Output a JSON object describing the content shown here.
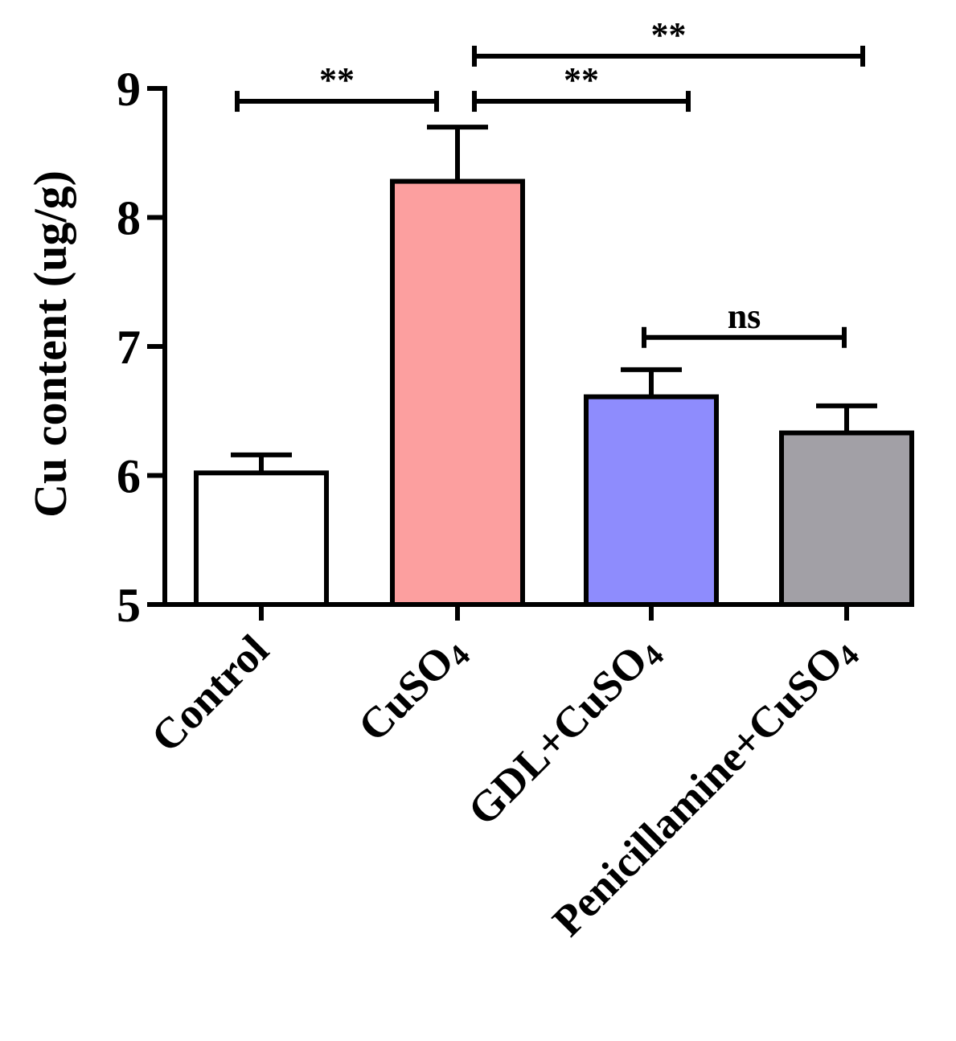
{
  "chart_data": {
    "type": "bar",
    "title": "",
    "xlabel": "",
    "ylabel": "Cu content (ug/g)",
    "ylim": [
      5,
      9
    ],
    "yticks": [
      5,
      6,
      7,
      8,
      9
    ],
    "grid": false,
    "categories": [
      {
        "base": "Control",
        "sub": ""
      },
      {
        "base": "CuSO",
        "sub": "4"
      },
      {
        "base": "GDL+CuSO",
        "sub": "4"
      },
      {
        "base": "Penicillamine+CuSO",
        "sub": "4"
      }
    ],
    "values": [
      6.02,
      8.28,
      6.61,
      6.33
    ],
    "errors": [
      0.14,
      0.42,
      0.21,
      0.21
    ],
    "colors": [
      "#ffffff",
      "#fc9f9f",
      "#8e8cfd",
      "#a2a0a6"
    ],
    "significance": [
      {
        "from": 0,
        "to": 1,
        "label": "**",
        "level": 8.9
      },
      {
        "from": 1,
        "to": 2,
        "label": "**",
        "level": 8.9
      },
      {
        "from": 1,
        "to": 3,
        "label": "**",
        "level": 9.25
      },
      {
        "from": 2,
        "to": 3,
        "label": "ns",
        "level": 7.07
      }
    ]
  }
}
